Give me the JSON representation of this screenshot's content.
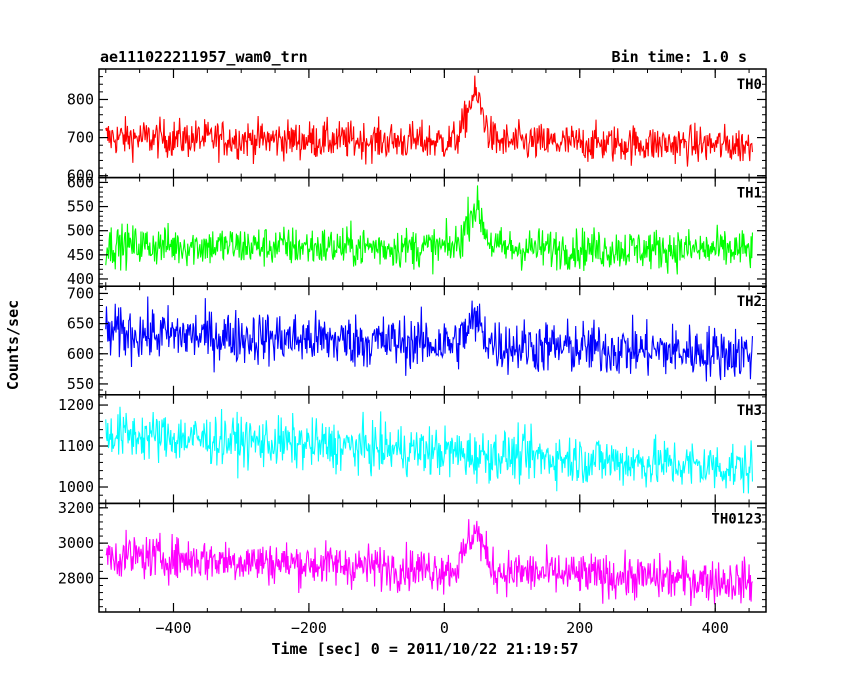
{
  "header": {
    "left_title": "ae111022211957_wam0_trn",
    "right_title": "Bin time: 1.0 s"
  },
  "chart_data": {
    "type": "line",
    "xlabel": "Time [sec] 0 = 2011/10/22 21:19:57",
    "ylabel": "Counts/sec",
    "xlim": [
      -510,
      475
    ],
    "x_range": [
      -500,
      455
    ],
    "x_ticks": [
      -400,
      -200,
      0,
      200,
      400
    ],
    "x_tick_labels": [
      "−400",
      "−200",
      "0",
      "200",
      "400"
    ],
    "burst_center": 45,
    "series": [
      {
        "name": "TH0",
        "color": "#ff0000",
        "ylim": [
          595,
          880
        ],
        "y_ticks": [
          600,
          700,
          800
        ],
        "y_tick_labels": [
          "600",
          "700",
          "800"
        ],
        "baseline_start": 700,
        "baseline_end": 680,
        "noise_amplitude": 45,
        "burst_peak": 875,
        "burst_width": 12
      },
      {
        "name": "TH1",
        "color": "#00ff00",
        "ylim": [
          385,
          610
        ],
        "y_ticks": [
          400,
          450,
          500,
          550,
          600
        ],
        "y_tick_labels": [
          "400",
          "450",
          "500",
          "550",
          "600"
        ],
        "baseline_start": 470,
        "baseline_end": 460,
        "noise_amplitude": 38,
        "burst_peak": 600,
        "burst_width": 12
      },
      {
        "name": "TH2",
        "color": "#0000ff",
        "ylim": [
          532,
          712
        ],
        "y_ticks": [
          550,
          600,
          650,
          700
        ],
        "y_tick_labels": [
          "550",
          "600",
          "650",
          "700"
        ],
        "baseline_start": 635,
        "baseline_end": 600,
        "noise_amplitude": 40,
        "burst_peak": 700,
        "burst_width": 12
      },
      {
        "name": "TH3",
        "color": "#00ffff",
        "ylim": [
          960,
          1225
        ],
        "y_ticks": [
          1000,
          1100,
          1200
        ],
        "y_tick_labels": [
          "1000",
          "1100",
          "1200"
        ],
        "baseline_start": 1130,
        "baseline_end": 1045,
        "noise_amplitude": 55,
        "burst_peak": 1130,
        "burst_width": 12
      },
      {
        "name": "TH0123",
        "color": "#ff00ff",
        "ylim": [
          2610,
          3225
        ],
        "y_ticks": [
          2800,
          3000,
          3200
        ],
        "y_tick_labels": [
          "2800",
          "3000",
          "3200"
        ],
        "baseline_start": 2930,
        "baseline_end": 2780,
        "noise_amplitude": 110,
        "burst_peak": 3220,
        "burst_width": 12
      }
    ]
  }
}
